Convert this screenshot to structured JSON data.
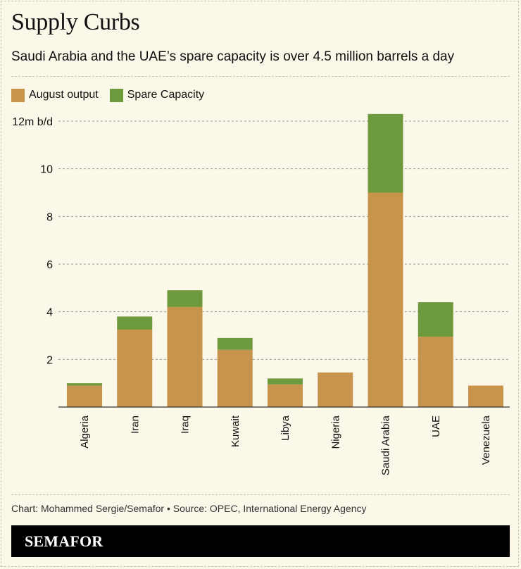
{
  "title": "Supply Curbs",
  "subtitle": "Saudi Arabia and the UAE’s spare capacity is over 4.5 million barrels a day",
  "credit": "Chart: Mohammed Sergie/Semafor • Source: OPEC, International Energy Agency",
  "brand": "SEMAFOR",
  "colors": {
    "output": "#c8934a",
    "spare": "#6e9a3e",
    "background": "#fbf8e9",
    "grid": "#9a9a9a"
  },
  "legend": [
    {
      "label": "August output",
      "color": "#c8934a"
    },
    {
      "label": "Spare Capacity",
      "color": "#6e9a3e"
    }
  ],
  "chart_data": {
    "type": "bar",
    "stacked": true,
    "title": "Supply Curbs",
    "categories": [
      "Algeria",
      "Iran",
      "Iraq",
      "Kuwait",
      "Libya",
      "Nigeria",
      "Saudi Arabia",
      "UAE",
      "Venezuela"
    ],
    "series": [
      {
        "name": "August output",
        "values": [
          0.9,
          3.25,
          4.2,
          2.4,
          0.95,
          1.45,
          9.0,
          2.95,
          0.9
        ]
      },
      {
        "name": "Spare Capacity",
        "values": [
          0.1,
          0.55,
          0.7,
          0.5,
          0.25,
          0.0,
          3.3,
          1.45,
          0.0
        ]
      }
    ],
    "ylim": [
      0,
      12
    ],
    "yticks": [
      2,
      4,
      6,
      8,
      10,
      12
    ],
    "ytick_labels": [
      "2",
      "4",
      "6",
      "8",
      "10",
      "12m b/d"
    ],
    "xlabel": "",
    "ylabel": "",
    "legend_position": "top-left",
    "grid": true
  }
}
